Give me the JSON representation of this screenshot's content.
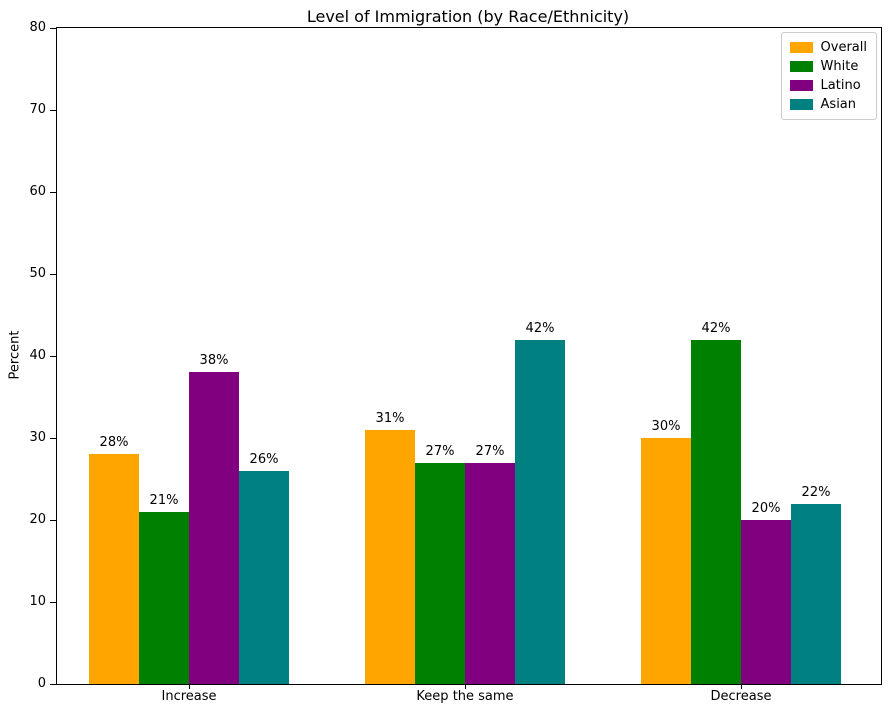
{
  "figure": {
    "background": "#ffffff",
    "axis_color": "#000000"
  },
  "chart_data": {
    "type": "bar",
    "title": "Level of Immigration (by Race/Ethnicity)",
    "xlabel": "",
    "ylabel": "Percent",
    "ylim": [
      0,
      80
    ],
    "yticks": [
      0,
      10,
      20,
      30,
      40,
      50,
      60,
      70,
      80
    ],
    "grid": false,
    "categories": [
      "Increase",
      "Keep the same",
      "Decrease"
    ],
    "series": [
      {
        "name": "Overall",
        "color": "#FFA500",
        "values": [
          28,
          31,
          30
        ]
      },
      {
        "name": "White",
        "color": "#008000",
        "values": [
          21,
          27,
          42
        ]
      },
      {
        "name": "Latino",
        "color": "#800080",
        "values": [
          38,
          27,
          20
        ]
      },
      {
        "name": "Asian",
        "color": "#008080",
        "values": [
          26,
          42,
          22
        ]
      }
    ],
    "value_labels": [
      [
        "28%",
        "31%",
        "30%"
      ],
      [
        "21%",
        "27%",
        "42%"
      ],
      [
        "38%",
        "27%",
        "20%"
      ],
      [
        "26%",
        "42%",
        "22%"
      ]
    ],
    "legend": {
      "position": "upper right",
      "entries": [
        "Overall",
        "White",
        "Latino",
        "Asian"
      ],
      "border_color": "#cccccc",
      "background": "#ffffff"
    }
  }
}
